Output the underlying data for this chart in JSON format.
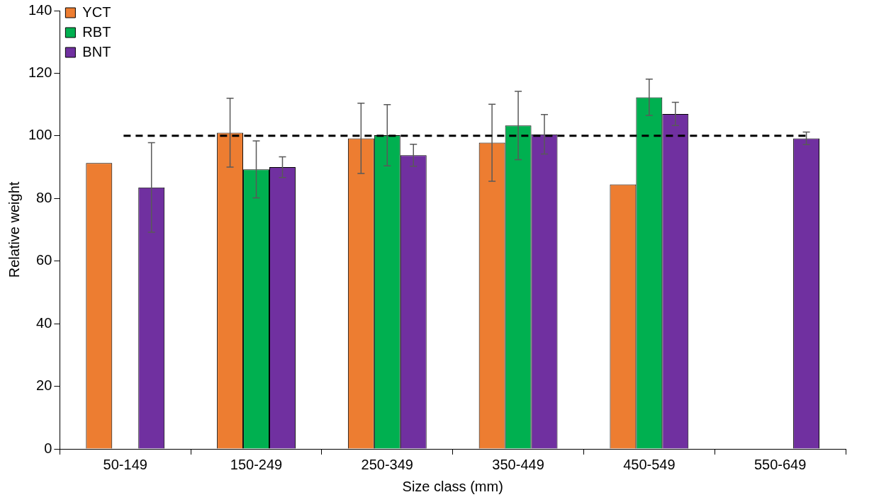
{
  "chart_data": {
    "type": "bar",
    "xlabel": "Size class (mm)",
    "ylabel": "Relative weight",
    "categories": [
      "50-149",
      "150-249",
      "250-349",
      "350-449",
      "450-549",
      "550-649"
    ],
    "series": [
      {
        "name": "YCT",
        "color": "#ed7d31",
        "values": [
          91.3,
          101,
          99.2,
          97.8,
          84.5,
          null
        ],
        "errors": [
          null,
          11,
          11.2,
          12.3,
          null,
          null
        ]
      },
      {
        "name": "RBT",
        "color": "#00b050",
        "values": [
          null,
          89.3,
          100.2,
          103.3,
          112.3,
          null
        ],
        "errors": [
          null,
          9.1,
          9.8,
          10.9,
          5.8,
          null
        ]
      },
      {
        "name": "BNT",
        "color": "#7030a0",
        "values": [
          83.5,
          90,
          93.8,
          100.5,
          107,
          99.2
        ],
        "errors": [
          14.3,
          3.3,
          3.5,
          6.3,
          3.7,
          2
        ]
      }
    ],
    "ylim": [
      0,
      140
    ],
    "yticks": [
      0,
      20,
      40,
      60,
      80,
      100,
      120,
      140
    ],
    "grid": false,
    "legend": "top left",
    "ref_lines": [
      {
        "axis": "y",
        "value": 100,
        "line_style": "dashed",
        "color": "#000000"
      }
    ]
  }
}
